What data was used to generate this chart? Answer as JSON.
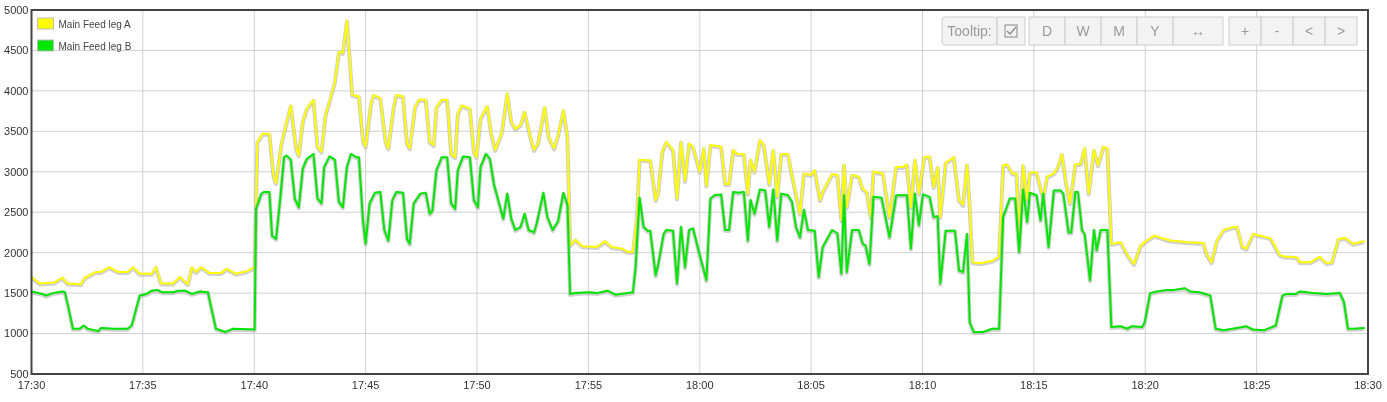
{
  "chart_data": {
    "type": "line",
    "legend": "top left",
    "grid": true,
    "line_style": "solid",
    "marker": "none",
    "xlim": [
      17.5,
      18.5
    ],
    "xticks": [
      {
        "value": 17.5,
        "label": "17:30"
      },
      {
        "value": 17.5833,
        "label": "17:35"
      },
      {
        "value": 17.6667,
        "label": "17:40"
      },
      {
        "value": 17.75,
        "label": "17:45"
      },
      {
        "value": 17.8333,
        "label": "17:50"
      },
      {
        "value": 17.9167,
        "label": "17:55"
      },
      {
        "value": 18,
        "label": "18:00"
      },
      {
        "value": 18.0833,
        "label": "18:05"
      },
      {
        "value": 18.1667,
        "label": "18:10"
      },
      {
        "value": 18.25,
        "label": "18:15"
      },
      {
        "value": 18.3333,
        "label": "18:20"
      },
      {
        "value": 18.4167,
        "label": "18:25"
      },
      {
        "value": 18.5,
        "label": "18:30"
      }
    ],
    "ylim": [
      500,
      5000
    ],
    "yticks": [
      500,
      1000,
      1500,
      2000,
      2500,
      3000,
      3500,
      4000,
      4500,
      5000
    ],
    "annotations": [
      "Tooltip:",
      "D",
      "W",
      "M",
      "Y",
      "↔",
      "+",
      "-",
      "<",
      ">"
    ],
    "series": [
      {
        "name": "Main Feed leg A",
        "color": "#ffff00",
        "x": [
          17.5,
          17.506,
          17.517,
          17.523,
          17.527,
          17.537,
          17.54,
          17.548,
          17.552,
          17.558,
          17.565,
          17.572,
          17.576,
          17.581,
          17.59,
          17.593,
          17.597,
          17.606,
          17.611,
          17.617,
          17.62,
          17.623,
          17.627,
          17.633,
          17.642,
          17.646,
          17.653,
          17.661,
          17.667,
          17.669,
          17.673,
          17.678,
          17.681,
          17.683,
          17.687,
          17.694,
          17.698,
          17.7,
          17.703,
          17.706,
          17.711,
          17.714,
          17.717,
          17.72,
          17.724,
          17.727,
          17.73,
          17.733,
          17.736,
          17.74,
          17.745,
          17.748,
          17.75,
          17.754,
          17.756,
          17.761,
          17.765,
          17.767,
          17.771,
          17.773,
          17.778,
          17.781,
          17.783,
          17.787,
          17.79,
          17.795,
          17.798,
          17.801,
          17.803,
          17.807,
          17.811,
          17.814,
          17.817,
          17.819,
          17.822,
          17.828,
          17.831,
          17.833,
          17.836,
          17.841,
          17.844,
          17.847,
          17.852,
          17.856,
          17.859,
          17.862,
          17.866,
          17.869,
          17.873,
          17.876,
          17.879,
          17.884,
          17.887,
          17.891,
          17.894,
          17.898,
          17.901,
          17.903,
          17.907,
          17.912,
          17.923,
          17.929,
          17.934,
          17.942,
          17.946,
          17.95,
          17.953,
          17.955,
          17.963,
          17.967,
          17.969,
          17.972,
          17.975,
          17.98,
          17.983,
          17.986,
          17.989,
          17.992,
          17.995,
          18.0,
          18.003,
          18.005,
          18.008,
          18.016,
          18.019,
          18.022,
          18.025,
          18.028,
          18.033,
          18.036,
          18.038,
          18.041,
          18.045,
          18.048,
          18.052,
          18.055,
          18.058,
          18.061,
          18.066,
          18.069,
          18.075,
          18.078,
          18.083,
          18.086,
          18.09,
          18.092,
          18.099,
          18.103,
          18.106,
          18.108,
          18.11,
          18.114,
          18.119,
          18.122,
          18.125,
          18.128,
          18.13,
          18.137,
          18.142,
          18.147,
          18.152,
          18.155,
          18.158,
          18.161,
          18.164,
          18.168,
          18.172,
          18.175,
          18.178,
          18.18,
          18.184,
          18.19,
          18.194,
          18.197,
          18.2,
          18.202,
          18.204,
          18.21,
          18.219,
          18.224,
          18.227,
          18.23,
          18.234,
          18.237,
          18.239,
          18.242,
          18.245,
          18.247,
          18.252,
          18.257,
          18.26,
          18.265,
          18.268,
          18.271,
          18.274,
          18.277,
          18.281,
          18.285,
          18.288,
          18.291,
          18.295,
          18.298,
          18.302,
          18.305,
          18.308,
          18.315,
          18.32,
          18.325,
          18.33,
          18.333,
          18.34,
          18.346,
          18.352,
          18.365,
          18.377,
          18.379,
          18.383,
          18.387,
          18.392,
          18.398,
          18.402,
          18.406,
          18.409,
          18.414,
          18.419,
          18.427,
          18.434,
          18.438,
          18.442,
          18.447,
          18.449,
          18.457,
          18.464,
          18.469,
          18.473,
          18.478,
          18.483,
          18.489,
          18.497
        ],
        "values": [
          1700,
          1620,
          1630,
          1690,
          1620,
          1610,
          1690,
          1760,
          1760,
          1820,
          1760,
          1760,
          1820,
          1740,
          1740,
          1820,
          1620,
          1620,
          1700,
          1610,
          1820,
          1760,
          1820,
          1750,
          1750,
          1800,
          1740,
          1770,
          1820,
          3370,
          3470,
          3470,
          2960,
          2860,
          3350,
          3820,
          3290,
          3200,
          3620,
          3780,
          3890,
          3310,
          3250,
          3700,
          3930,
          4110,
          4480,
          4470,
          4870,
          3950,
          3930,
          3390,
          3310,
          3840,
          3950,
          3910,
          3370,
          3290,
          3800,
          3950,
          3930,
          3350,
          3290,
          3800,
          3890,
          3890,
          3370,
          3330,
          3800,
          3890,
          3890,
          3220,
          3180,
          3720,
          3820,
          3780,
          3250,
          3180,
          3660,
          3810,
          3470,
          3270,
          3490,
          3970,
          3620,
          3530,
          3580,
          3740,
          3450,
          3270,
          3350,
          3800,
          3430,
          3290,
          3450,
          3760,
          3430,
          2090,
          2160,
          2080,
          2070,
          2140,
          2070,
          2050,
          2010,
          2010,
          2440,
          3150,
          3140,
          2650,
          2750,
          3250,
          3370,
          3270,
          2670,
          3370,
          2890,
          3350,
          3310,
          3000,
          3290,
          2830,
          3330,
          3310,
          2850,
          2850,
          3270,
          3220,
          3220,
          2730,
          3150,
          3000,
          3390,
          3330,
          2850,
          3270,
          2690,
          3220,
          3220,
          2960,
          2480,
          2980,
          2960,
          3020,
          2650,
          2750,
          2970,
          2960,
          2400,
          3090,
          2560,
          2960,
          2940,
          2790,
          2750,
          2440,
          3000,
          2980,
          2440,
          3060,
          3060,
          3090,
          2560,
          3150,
          2730,
          3180,
          3190,
          2810,
          3060,
          2440,
          3110,
          3180,
          2650,
          2590,
          3090,
          2560,
          1880,
          1870,
          1900,
          1950,
          3080,
          3090,
          2980,
          2980,
          2230,
          3080,
          2650,
          2990,
          2990,
          2670,
          2940,
          2980,
          3060,
          3220,
          2870,
          2610,
          3090,
          3100,
          3290,
          2730,
          3270,
          3080,
          3310,
          3290,
          2110,
          2130,
          1970,
          1860,
          2090,
          2130,
          2210,
          2180,
          2150,
          2130,
          2120,
          1990,
          1880,
          2150,
          2280,
          2310,
          2320,
          2070,
          2050,
          2230,
          2210,
          2180,
          1970,
          1950,
          1950,
          1940,
          1880,
          1880,
          1950,
          1870,
          1880,
          2170,
          2180,
          2110,
          2140
        ]
      },
      {
        "name": "Main Feed leg B",
        "color": "#00e600",
        "x": [
          17.5,
          17.508,
          17.511,
          17.516,
          17.523,
          17.525,
          17.527,
          17.531,
          17.536,
          17.539,
          17.542,
          17.55,
          17.552,
          17.561,
          17.572,
          17.575,
          17.581,
          17.586,
          17.59,
          17.594,
          17.598,
          17.606,
          17.61,
          17.615,
          17.62,
          17.626,
          17.632,
          17.638,
          17.645,
          17.651,
          17.667,
          17.668,
          17.672,
          17.674,
          17.678,
          17.68,
          17.683,
          17.686,
          17.689,
          17.691,
          17.694,
          17.697,
          17.7,
          17.703,
          17.706,
          17.711,
          17.714,
          17.717,
          17.719,
          17.723,
          17.727,
          17.73,
          17.733,
          17.736,
          17.739,
          17.743,
          17.745,
          17.748,
          17.75,
          17.753,
          17.757,
          17.761,
          17.764,
          17.767,
          17.77,
          17.773,
          17.778,
          17.781,
          17.783,
          17.786,
          17.791,
          17.795,
          17.798,
          17.8,
          17.803,
          17.807,
          17.811,
          17.814,
          17.817,
          17.819,
          17.823,
          17.828,
          17.831,
          17.834,
          17.836,
          17.84,
          17.843,
          17.846,
          17.853,
          17.856,
          17.859,
          17.862,
          17.866,
          17.869,
          17.872,
          17.876,
          17.878,
          17.883,
          17.886,
          17.89,
          17.894,
          17.898,
          17.901,
          17.903,
          17.907,
          17.917,
          17.923,
          17.931,
          17.937,
          17.95,
          17.952,
          17.955,
          17.958,
          17.961,
          17.963,
          17.967,
          17.969,
          17.973,
          17.975,
          17.98,
          17.983,
          17.986,
          17.989,
          17.992,
          17.995,
          18.0,
          18.005,
          18.008,
          18.011,
          18.016,
          18.019,
          18.022,
          18.025,
          18.029,
          18.033,
          18.036,
          18.038,
          18.041,
          18.045,
          18.049,
          18.052,
          18.055,
          18.058,
          18.061,
          18.066,
          18.069,
          18.072,
          18.075,
          18.078,
          18.081,
          18.086,
          18.089,
          18.092,
          18.099,
          18.103,
          18.106,
          18.108,
          18.11,
          18.114,
          18.119,
          18.122,
          18.124,
          18.127,
          18.13,
          18.136,
          18.142,
          18.147,
          18.155,
          18.158,
          18.161,
          18.164,
          18.167,
          18.172,
          18.175,
          18.178,
          18.18,
          18.184,
          18.191,
          18.194,
          18.197,
          18.2,
          18.202,
          18.205,
          18.212,
          18.219,
          18.224,
          18.227,
          18.232,
          18.236,
          18.239,
          18.242,
          18.245,
          18.247,
          18.252,
          18.255,
          18.257,
          18.261,
          18.265,
          18.27,
          18.272,
          18.276,
          18.278,
          18.281,
          18.283,
          18.286,
          18.288,
          18.292,
          18.295,
          18.297,
          18.3,
          18.305,
          18.308,
          18.315,
          18.32,
          18.323,
          18.331,
          18.333,
          18.337,
          18.342,
          18.35,
          18.355,
          18.363,
          18.367,
          18.374,
          18.382,
          18.386,
          18.392,
          18.402,
          18.409,
          18.414,
          18.422,
          18.431,
          18.436,
          18.439,
          18.446,
          18.449,
          18.459,
          18.469,
          18.479,
          18.482,
          18.485,
          18.49,
          18.497
        ],
        "values": [
          1520,
          1490,
          1470,
          1500,
          1520,
          1510,
          1370,
          1060,
          1060,
          1100,
          1060,
          1030,
          1070,
          1060,
          1060,
          1100,
          1470,
          1490,
          1530,
          1540,
          1510,
          1510,
          1530,
          1530,
          1490,
          1520,
          1510,
          1060,
          1020,
          1060,
          1050,
          2540,
          2730,
          2750,
          2750,
          2210,
          2170,
          2650,
          3180,
          3200,
          3150,
          2670,
          2560,
          3040,
          3160,
          3220,
          2670,
          2610,
          3060,
          3190,
          3150,
          2630,
          2560,
          3060,
          3220,
          3180,
          3180,
          2400,
          2110,
          2610,
          2740,
          2750,
          2280,
          2150,
          2650,
          2750,
          2740,
          2170,
          2110,
          2610,
          2730,
          2740,
          2480,
          2520,
          3020,
          3180,
          3180,
          2610,
          2540,
          3020,
          3190,
          3180,
          2650,
          2560,
          3060,
          3220,
          3160,
          2850,
          2420,
          2730,
          2420,
          2280,
          2320,
          2480,
          2280,
          2250,
          2360,
          2740,
          2440,
          2280,
          2390,
          2740,
          2590,
          1490,
          1500,
          1510,
          1500,
          1530,
          1480,
          1510,
          1820,
          2680,
          2320,
          2270,
          2270,
          1720,
          1860,
          2230,
          2280,
          2270,
          1620,
          2320,
          1820,
          2280,
          2300,
          1970,
          1660,
          2670,
          2710,
          2720,
          2280,
          2280,
          2750,
          2740,
          2750,
          2150,
          2650,
          2480,
          2780,
          2770,
          2320,
          2780,
          2150,
          2730,
          2710,
          2630,
          2320,
          2190,
          2530,
          2280,
          2270,
          1700,
          2070,
          2280,
          2240,
          1740,
          2710,
          1760,
          2280,
          2280,
          2110,
          2090,
          1860,
          2690,
          2680,
          2190,
          2710,
          2710,
          2050,
          2730,
          2340,
          2720,
          2690,
          2440,
          2450,
          1620,
          2270,
          2270,
          1780,
          1760,
          2230,
          1140,
          1020,
          1020,
          1060,
          1060,
          2440,
          2670,
          2670,
          2010,
          2780,
          2380,
          2740,
          2710,
          2400,
          2730,
          2070,
          2770,
          2770,
          2730,
          2250,
          2250,
          2750,
          2750,
          2280,
          2230,
          1660,
          2280,
          2030,
          2280,
          2280,
          1080,
          1090,
          1060,
          1090,
          1080,
          1140,
          1500,
          1520,
          1540,
          1540,
          1560,
          1520,
          1510,
          1470,
          1060,
          1040,
          1070,
          1090,
          1050,
          1040,
          1100,
          1470,
          1490,
          1490,
          1520,
          1500,
          1490,
          1500,
          1390,
          1060,
          1060,
          1070
        ]
      }
    ]
  }
}
